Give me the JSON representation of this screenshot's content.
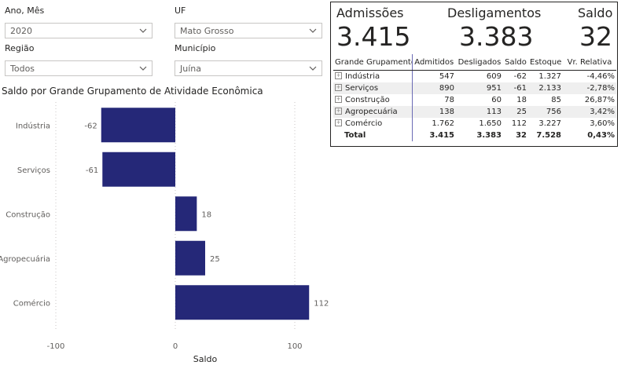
{
  "filters": {
    "ano_mes": {
      "label": "Ano, Mês",
      "value": "2020"
    },
    "uf": {
      "label": "UF",
      "value": "Mato Grosso"
    },
    "regiao": {
      "label": "Região",
      "value": "Todos"
    },
    "municipio": {
      "label": "Município",
      "value": "Juína"
    }
  },
  "kpis": {
    "admissoes": {
      "label": "Admissões",
      "value": "3.415"
    },
    "desligamentos": {
      "label": "Desligamentos",
      "value": "3.383"
    },
    "saldo": {
      "label": "Saldo",
      "value": "32"
    }
  },
  "matrix": {
    "headers": [
      "Grande Grupamento",
      "Admitidos",
      "Desligados",
      "Saldo",
      "Estoque",
      "Vr. Relativa"
    ],
    "rows": [
      {
        "grupo": "Indústria",
        "admitidos": "547",
        "desligados": "609",
        "saldo": "-62",
        "estoque": "1.327",
        "vr": "-4,46%"
      },
      {
        "grupo": "Serviços",
        "admitidos": "890",
        "desligados": "951",
        "saldo": "-61",
        "estoque": "2.133",
        "vr": "-2,78%"
      },
      {
        "grupo": "Construção",
        "admitidos": "78",
        "desligados": "60",
        "saldo": "18",
        "estoque": "85",
        "vr": "26,87%"
      },
      {
        "grupo": "Agropecuária",
        "admitidos": "138",
        "desligados": "113",
        "saldo": "25",
        "estoque": "756",
        "vr": "3,42%"
      },
      {
        "grupo": "Comércio",
        "admitidos": "1.762",
        "desligados": "1.650",
        "saldo": "112",
        "estoque": "3.227",
        "vr": "3,60%"
      }
    ],
    "total": {
      "grupo": "Total",
      "admitidos": "3.415",
      "desligados": "3.383",
      "saldo": "32",
      "estoque": "7.528",
      "vr": "0,43%"
    }
  },
  "chart_data": {
    "type": "bar",
    "orientation": "horizontal",
    "title": "Saldo por Grande Grupamento de Atividade Econômica",
    "xlabel": "Saldo",
    "ylabel": "",
    "categories": [
      "Indústria",
      "Serviços",
      "Construção",
      "Agropecuária",
      "Comércio"
    ],
    "values": [
      -62,
      -61,
      18,
      25,
      112
    ],
    "xlim": [
      -100,
      100
    ],
    "xticks": [
      -100,
      0,
      100
    ],
    "grid": true,
    "bar_color": "#252878"
  },
  "colors": {
    "bar": "#252878",
    "alt_row": "#efefef",
    "separator": "#6b6bb5"
  }
}
